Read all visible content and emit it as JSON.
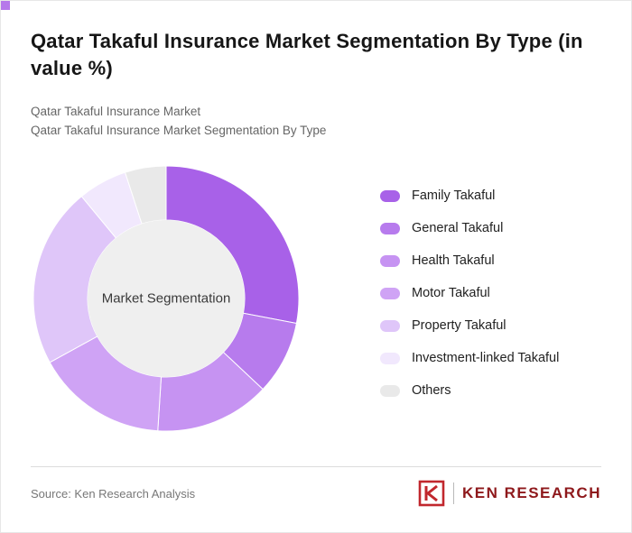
{
  "page": {
    "title": "Qatar Takaful Insurance Market Segmentation By Type (in value %)",
    "subtitle1": "Qatar Takaful Insurance Market",
    "subtitle2": "Qatar Takaful Insurance Market Segmentation By Type"
  },
  "accent_color": "#b678ea",
  "footer": {
    "source": "Source: Ken Research Analysis",
    "logo_text": "KEN RESEARCH",
    "logo_color": "#c1272d"
  },
  "chart_data": {
    "type": "pie",
    "subtype": "donut",
    "title": "Qatar Takaful Insurance Market Segmentation By Type (in value %)",
    "center_label": "Market Segmentation",
    "legend_position": "right",
    "start_angle": 0,
    "labels": [
      "Family Takaful",
      "General Takaful",
      "Health Takaful",
      "Motor Takaful",
      "Property Takaful",
      "Investment-linked Takaful",
      "Others"
    ],
    "values": [
      28,
      9,
      14,
      16,
      22,
      6,
      5
    ],
    "colors": [
      "#a861e8",
      "#b77bed",
      "#c693f2",
      "#cfa3f5",
      "#dfc6f9",
      "#f1e8fd",
      "#e9e9e9"
    ],
    "center_fill": "#efefef"
  }
}
